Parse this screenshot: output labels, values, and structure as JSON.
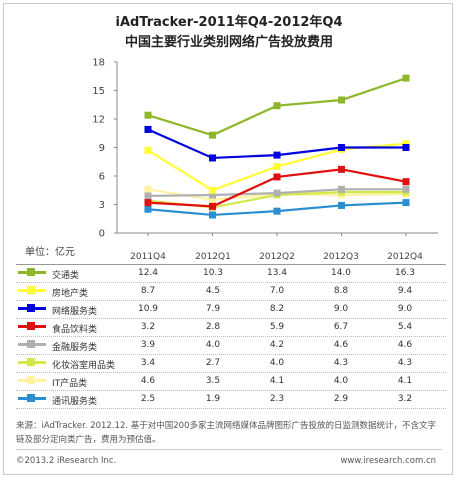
{
  "title": "iAdTracker-2011年Q4-2012年Q4",
  "subtitle": "中国主要行业类别网络广告投放费用",
  "unit_label": "单位：亿元",
  "source_text": "来源：iAdTracker. 2012.12. 基于对中国200多家主流网络媒体品牌图形广告投放的日监测数据统计，不含文字链及部分定向类广告，费用为预估值。",
  "footer_left": "©2013.2 iResearch Inc.",
  "footer_right": "www.iresearch.com.cn",
  "chart_data": {
    "type": "line",
    "categories": [
      "2011Q4",
      "2012Q1",
      "2012Q2",
      "2012Q3",
      "2012Q4"
    ],
    "ylim": [
      0,
      18
    ],
    "yticks": [
      0,
      3,
      6,
      9,
      12,
      15,
      18
    ],
    "grid": false,
    "series": [
      {
        "name": "交通类",
        "color": "#8db728",
        "values": [
          12.4,
          10.3,
          13.4,
          14.0,
          16.3
        ]
      },
      {
        "name": "房地产类",
        "color": "#ffff33",
        "values": [
          8.7,
          4.5,
          7.0,
          8.8,
          9.4
        ]
      },
      {
        "name": "网络服务类",
        "color": "#0000e0",
        "values": [
          10.9,
          7.9,
          8.2,
          9.0,
          9.0
        ]
      },
      {
        "name": "食品饮料类",
        "color": "#e01010",
        "values": [
          3.2,
          2.8,
          5.9,
          6.7,
          5.4
        ]
      },
      {
        "name": "金融服务类",
        "color": "#b0b0b0",
        "values": [
          3.9,
          4.0,
          4.2,
          4.6,
          4.6
        ]
      },
      {
        "name": "化妆浴室用品类",
        "color": "#d4e84a",
        "values": [
          3.4,
          2.7,
          4.0,
          4.3,
          4.3
        ]
      },
      {
        "name": "IT产品类",
        "color": "#fff2a0",
        "values": [
          4.6,
          3.5,
          4.1,
          4.0,
          4.1
        ]
      },
      {
        "name": "通讯服务类",
        "color": "#2a8fd0",
        "values": [
          2.5,
          1.9,
          2.3,
          2.9,
          3.2
        ]
      }
    ]
  }
}
